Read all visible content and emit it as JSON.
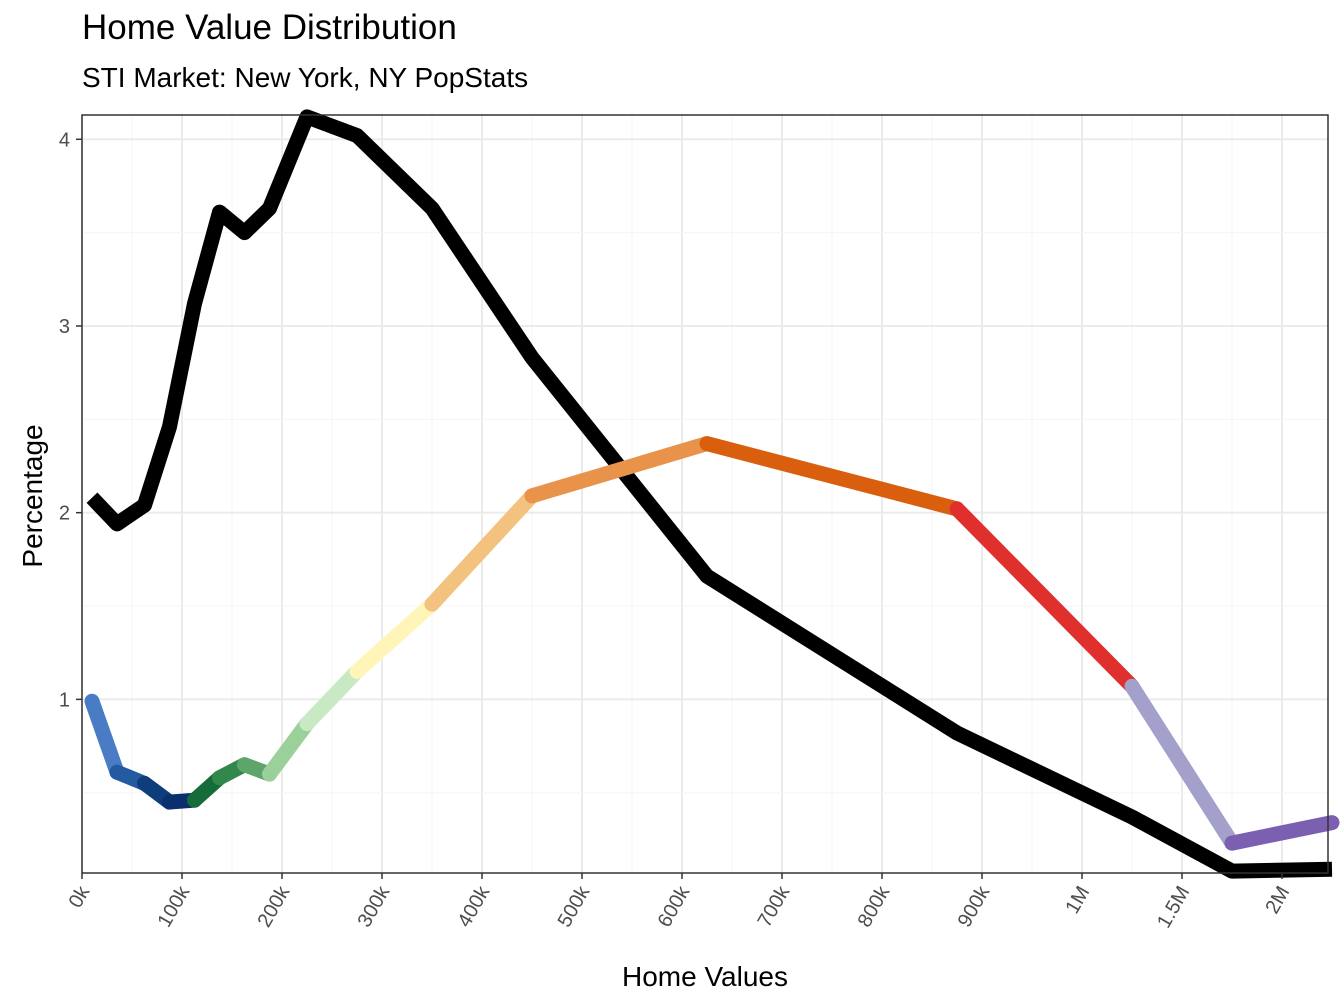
{
  "chart_data": {
    "type": "line",
    "title": "Home Value Distribution",
    "subtitle": "STI Market: New York, NY PopStats",
    "xlabel": "Home Values",
    "ylabel": "Percentage",
    "x_tick_labels": [
      "0k",
      "100k",
      "200k",
      "300k",
      "400k",
      "500k",
      "600k",
      "700k",
      "800k",
      "900k",
      "1M",
      "1.5M",
      "2M"
    ],
    "y_ticks": [
      1,
      2,
      3,
      4
    ],
    "ylim": [
      0.07,
      4.13
    ],
    "grid": true,
    "series": [
      {
        "color": "#000000",
        "x": [
          "10k",
          "35k",
          "62.5k",
          "87.5k",
          "112.5k",
          "137.5k",
          "162.5k",
          "187.5k",
          "225k",
          "275k",
          "350k",
          "450k",
          "625k",
          "875k",
          "1.25M",
          "1.75M",
          "2.25M"
        ],
        "values": [
          2.08,
          1.94,
          2.04,
          2.46,
          3.12,
          3.61,
          3.5,
          3.63,
          4.12,
          4.02,
          3.63,
          2.83,
          1.66,
          0.82,
          0.37,
          0.08,
          0.09
        ]
      },
      {
        "x": [
          "10k",
          "35k",
          "62.5k",
          "87.5k",
          "112.5k",
          "137.5k",
          "162.5k",
          "187.5k",
          "225k",
          "275k",
          "350k",
          "450k",
          "625k",
          "875k",
          "1.25M",
          "1.75M",
          "2.25M"
        ],
        "values": [
          0.99,
          0.61,
          0.55,
          0.45,
          0.46,
          0.58,
          0.65,
          0.6,
          0.87,
          1.15,
          1.51,
          2.09,
          2.37,
          2.02,
          1.07,
          0.23,
          0.34
        ],
        "segment_colors": [
          "#4a7cc6",
          "#245ba0",
          "#0d3d7a",
          "#0a2f6e",
          "#166c38",
          "#32884a",
          "#5da56b",
          "#9bd09a",
          "#c8e9c4",
          "#fff5b8",
          "#f3c27e",
          "#e8924a",
          "#d95f0e",
          "#e0302e",
          "#a3a0cc",
          "#7b5fb0"
        ]
      }
    ]
  }
}
